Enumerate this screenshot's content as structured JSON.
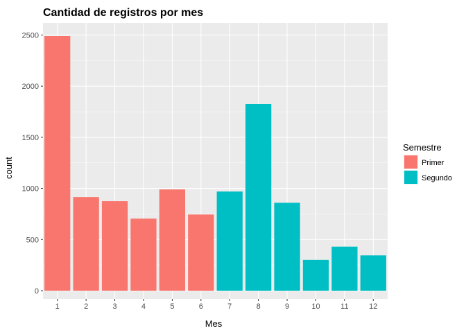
{
  "chart_data": {
    "type": "bar",
    "title": "Cantidad de registros por mes",
    "xlabel": "Mes",
    "ylabel": "count",
    "categories": [
      "1",
      "2",
      "3",
      "4",
      "5",
      "6",
      "7",
      "8",
      "9",
      "10",
      "11",
      "12"
    ],
    "values": [
      2490,
      915,
      875,
      705,
      990,
      745,
      970,
      1825,
      860,
      300,
      430,
      345
    ],
    "groups": [
      "Primer",
      "Primer",
      "Primer",
      "Primer",
      "Primer",
      "Primer",
      "Segundo",
      "Segundo",
      "Segundo",
      "Segundo",
      "Segundo",
      "Segundo"
    ],
    "ylim": [
      0,
      2600
    ],
    "yticks": [
      0,
      500,
      1000,
      1500,
      2000,
      2500
    ],
    "grid": true,
    "legend": {
      "title": "Semestre",
      "placement": "right",
      "entries": [
        {
          "name": "Primer",
          "color": "#F8766D"
        },
        {
          "name": "Segundo",
          "color": "#00BFC4"
        }
      ]
    },
    "colors": {
      "panel_bg": "#EBEBEB",
      "grid": "#FFFFFF"
    }
  }
}
